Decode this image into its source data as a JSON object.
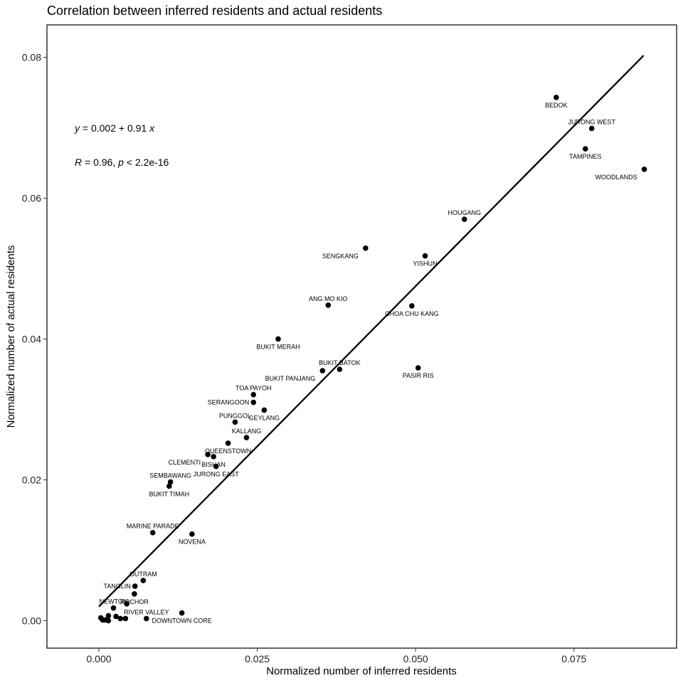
{
  "chart_data": {
    "type": "scatter",
    "title": "Correlation between inferred residents and actual residents",
    "xlabel": "Normalized number of inferred residents",
    "ylabel": "Normalized number of actual residents",
    "xlim": [
      -0.0082,
      0.0912
    ],
    "ylim": [
      -0.0039,
      0.0846
    ],
    "xticks": [
      0.0,
      0.025,
      0.05,
      0.075
    ],
    "xtick_labels": [
      "0.000",
      "0.025",
      "0.050",
      "0.075"
    ],
    "yticks": [
      0.0,
      0.02,
      0.04,
      0.06,
      0.08
    ],
    "ytick_labels": [
      "0.00",
      "0.02",
      "0.04",
      "0.06",
      "0.08"
    ],
    "grid": false,
    "regression": {
      "intercept": 0.002,
      "slope": 0.91,
      "x_range": [
        0.0,
        0.086
      ],
      "equation_label": {
        "y": "y",
        "eq": " = 0.002 + 0.91 ",
        "x": "x"
      },
      "stats_label": {
        "r": "R",
        "r_val": " = 0.96, ",
        "p": "p",
        "p_val": " < 2.2e-16"
      }
    },
    "points": [
      {
        "x": 0.0722,
        "y": 0.0743,
        "label": "BEDOK",
        "pos": "below"
      },
      {
        "x": 0.0778,
        "y": 0.0699,
        "label": "JURONG WEST",
        "pos": "above"
      },
      {
        "x": 0.0768,
        "y": 0.067,
        "label": "TAMPINES",
        "pos": "below"
      },
      {
        "x": 0.0861,
        "y": 0.0641,
        "label": "WOODLANDS",
        "pos": "below-left"
      },
      {
        "x": 0.0577,
        "y": 0.057,
        "label": "HOUGANG",
        "pos": "above"
      },
      {
        "x": 0.0421,
        "y": 0.0529,
        "label": "SENGKANG",
        "pos": "below-left"
      },
      {
        "x": 0.0515,
        "y": 0.0518,
        "label": "YISHUN",
        "pos": "below"
      },
      {
        "x": 0.0362,
        "y": 0.0448,
        "label": "ANG MO KIO",
        "pos": "above"
      },
      {
        "x": 0.0494,
        "y": 0.0447,
        "label": "CHOA CHU KANG",
        "pos": "below"
      },
      {
        "x": 0.0283,
        "y": 0.04,
        "label": "BUKIT MERAH",
        "pos": "below"
      },
      {
        "x": 0.038,
        "y": 0.0357,
        "label": "BUKIT BATOK",
        "pos": "above"
      },
      {
        "x": 0.0353,
        "y": 0.0355,
        "label": "BUKIT PANJANG",
        "pos": "below-left"
      },
      {
        "x": 0.0504,
        "y": 0.0359,
        "label": "PASIR RIS",
        "pos": "below"
      },
      {
        "x": 0.0244,
        "y": 0.0321,
        "label": "TOA PAYOH",
        "pos": "above"
      },
      {
        "x": 0.0244,
        "y": 0.031,
        "label": "SERANGOON",
        "pos": "left"
      },
      {
        "x": 0.0261,
        "y": 0.0299,
        "label": "GEYLANG",
        "pos": "below"
      },
      {
        "x": 0.0215,
        "y": 0.0282,
        "label": "PUNGGOL",
        "pos": "above"
      },
      {
        "x": 0.0233,
        "y": 0.026,
        "label": "KALLANG",
        "pos": "above"
      },
      {
        "x": 0.0204,
        "y": 0.0252,
        "label": "QUEENSTOWN",
        "pos": "below"
      },
      {
        "x": 0.0172,
        "y": 0.0236,
        "label": "CLEMENTI",
        "pos": "below-left"
      },
      {
        "x": 0.0181,
        "y": 0.0233,
        "label": "BISHAN",
        "pos": "below"
      },
      {
        "x": 0.0185,
        "y": 0.0219,
        "label": "JURONG EAST",
        "pos": "below"
      },
      {
        "x": 0.0113,
        "y": 0.0197,
        "label": "SEMBAWANG",
        "pos": "above"
      },
      {
        "x": 0.0111,
        "y": 0.0191,
        "label": "BUKIT TIMAH",
        "pos": "below"
      },
      {
        "x": 0.0085,
        "y": 0.0125,
        "label": "MARINE PARADE",
        "pos": "above"
      },
      {
        "x": 0.0147,
        "y": 0.0123,
        "label": "NOVENA",
        "pos": "below"
      },
      {
        "x": 0.007,
        "y": 0.0057,
        "label": "OUTRAM",
        "pos": "above"
      },
      {
        "x": 0.0057,
        "y": 0.0049,
        "label": "TANGLIN",
        "pos": "left"
      },
      {
        "x": 0.0056,
        "y": 0.0038,
        "label": "ROCHOR",
        "pos": "below"
      },
      {
        "x": 0.0044,
        "y": 0.0024,
        "label": "",
        "pos": "none"
      },
      {
        "x": 0.0023,
        "y": 0.0018,
        "label": "NEWTON",
        "pos": "above"
      },
      {
        "x": 0.0131,
        "y": 0.0011,
        "label": "DOWNTOWN CORE",
        "pos": "below"
      },
      {
        "x": 0.0075,
        "y": 0.0003,
        "label": "RIVER VALLEY",
        "pos": "above"
      },
      {
        "x": 0.0015,
        "y": 0.0007,
        "label": "",
        "pos": "none"
      },
      {
        "x": 0.0027,
        "y": 0.0006,
        "label": "",
        "pos": "none"
      },
      {
        "x": 0.0034,
        "y": 0.0003,
        "label": "",
        "pos": "none"
      },
      {
        "x": 0.0042,
        "y": 0.0003,
        "label": "",
        "pos": "none"
      },
      {
        "x": 0.0003,
        "y": 0.0004,
        "label": "",
        "pos": "none"
      },
      {
        "x": 0.0006,
        "y": 0.0001,
        "label": "",
        "pos": "none"
      },
      {
        "x": 0.001,
        "y": 0.0001,
        "label": "",
        "pos": "none"
      },
      {
        "x": 0.0015,
        "y": 0.0,
        "label": "",
        "pos": "none"
      }
    ]
  }
}
